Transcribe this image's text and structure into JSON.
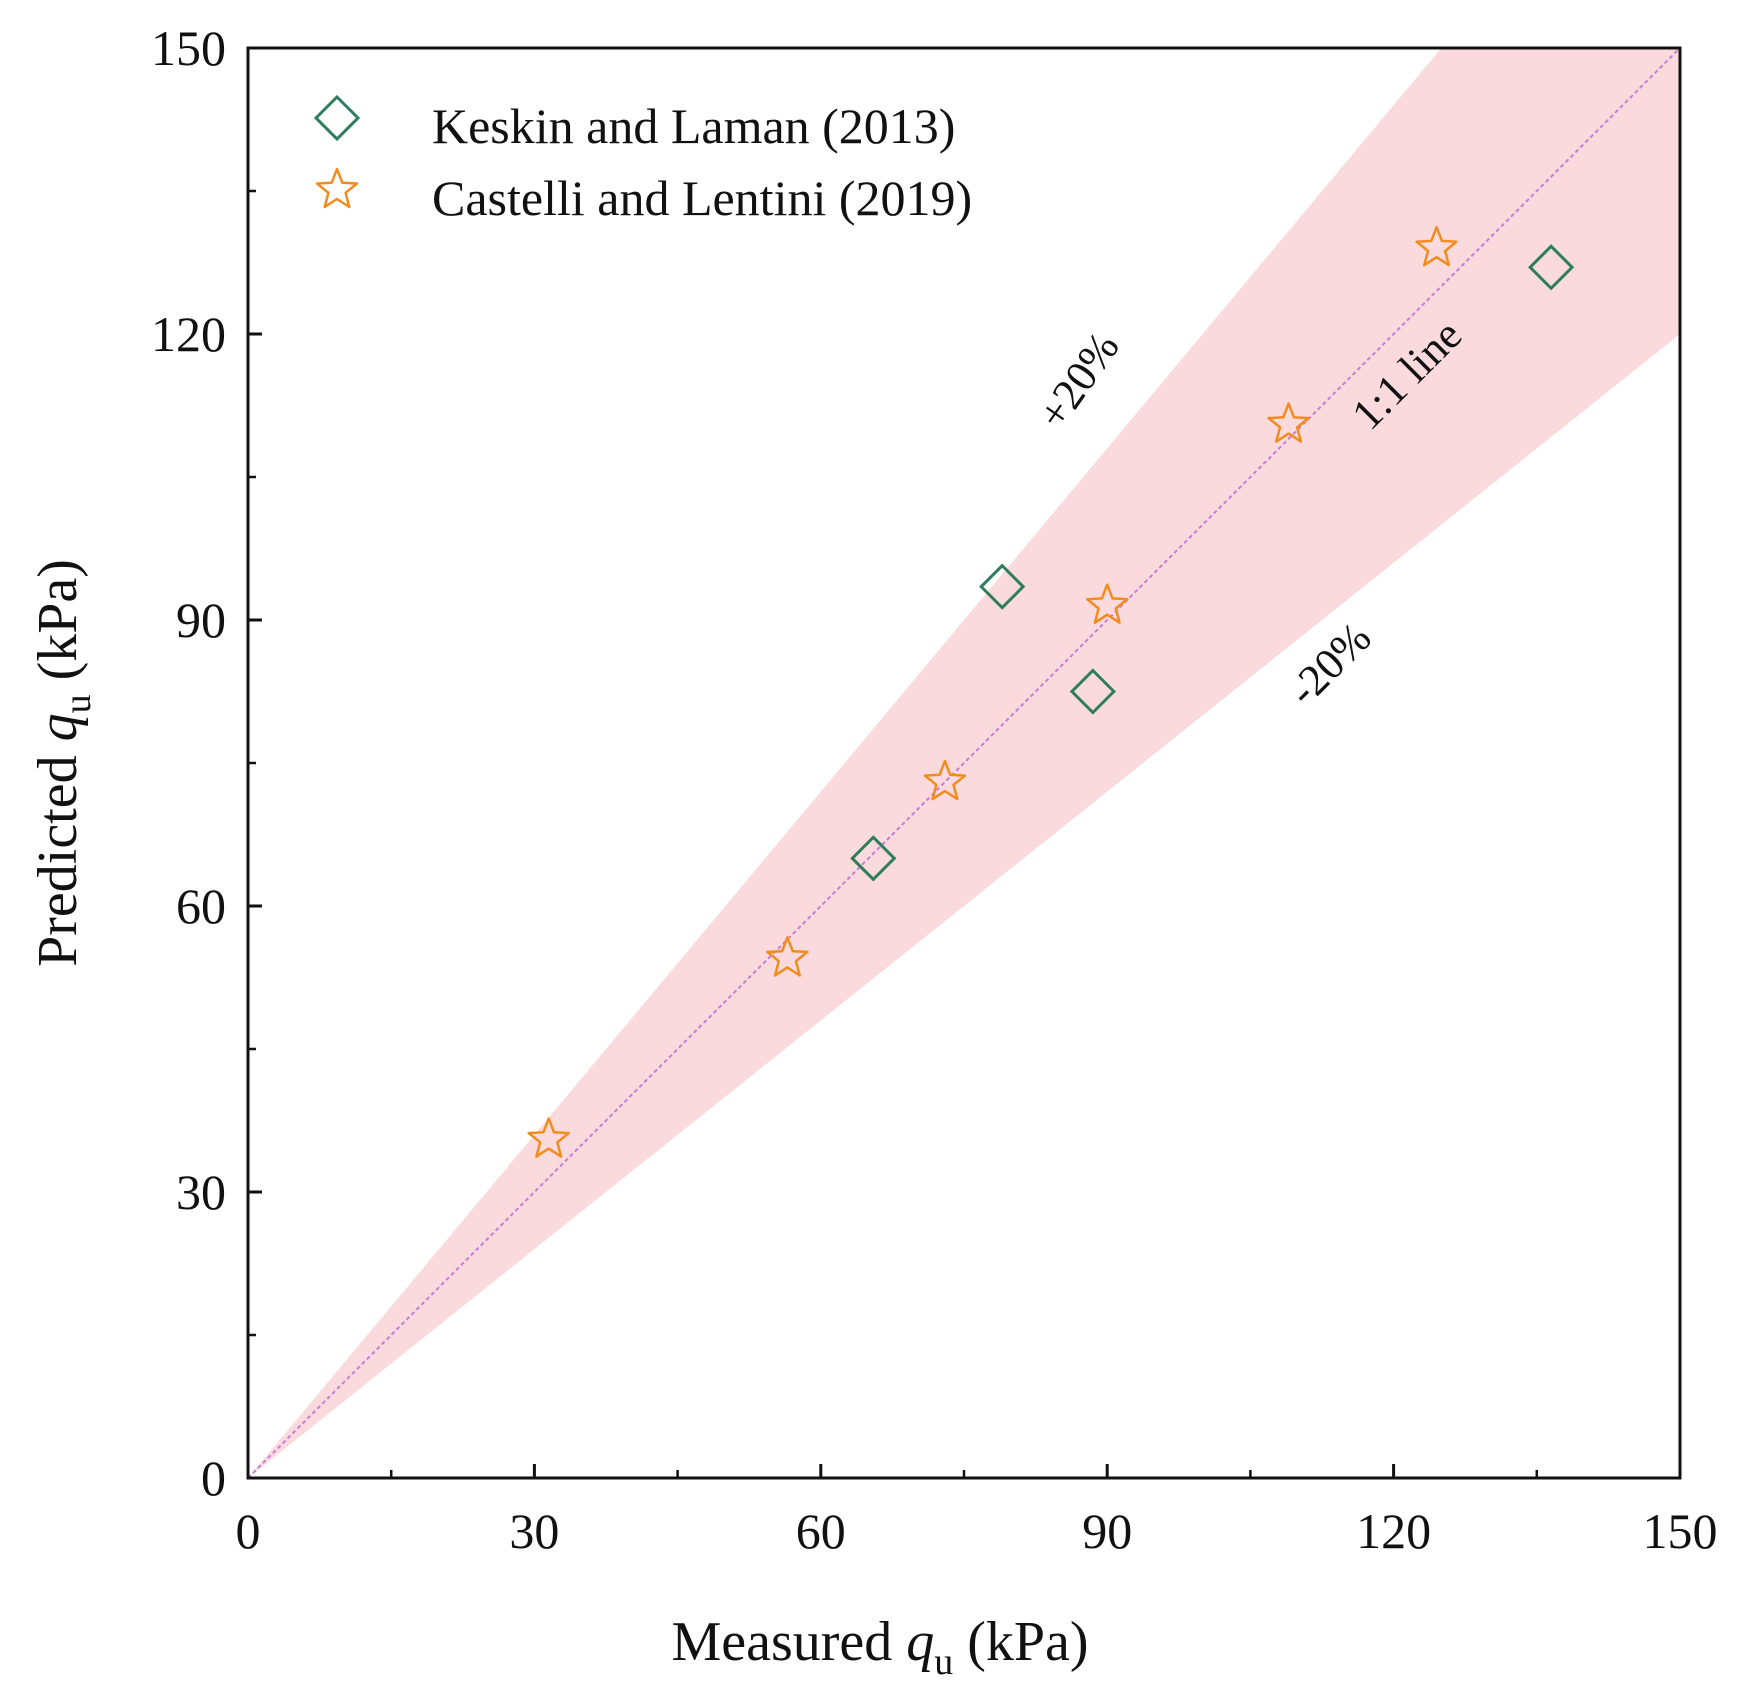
{
  "chart_data": {
    "type": "scatter",
    "title": "",
    "xlabel": {
      "prefix": "Measured ",
      "var": "q",
      "sub": "u",
      "suffix": " (kPa)"
    },
    "ylabel": {
      "prefix": "Predicted ",
      "var": "q",
      "sub": "u",
      "suffix": " (kPa)"
    },
    "xlim": [
      0,
      150
    ],
    "ylim": [
      0,
      150
    ],
    "xticks": [
      0,
      30,
      60,
      90,
      120,
      150
    ],
    "yticks": [
      0,
      30,
      60,
      90,
      120,
      150
    ],
    "grid": false,
    "legend_position": "top-left",
    "band": {
      "lower_factor": 0.8,
      "upper_factor": 1.2,
      "color": "#fadadd"
    },
    "reference_line": {
      "label": "1:1 line",
      "color": "#c77dd6"
    },
    "annotations": {
      "upper": "+20%",
      "lower": "-20%",
      "line": "1:1 line"
    },
    "series": [
      {
        "name": "Keskin and Laman (2013)",
        "marker": "diamond",
        "color": "#2e7d5b",
        "points": [
          [
            65.5,
            65
          ],
          [
            79,
            93.5
          ],
          [
            88.5,
            82.5
          ],
          [
            136.5,
            127
          ]
        ]
      },
      {
        "name": "Castelli and Lentini (2019)",
        "marker": "star",
        "color": "#f28c1e",
        "points": [
          [
            31.5,
            35.5
          ],
          [
            56.5,
            54.5
          ],
          [
            73,
            73
          ],
          [
            90,
            91.5
          ],
          [
            109,
            110.5
          ],
          [
            124.5,
            129
          ]
        ]
      }
    ]
  }
}
